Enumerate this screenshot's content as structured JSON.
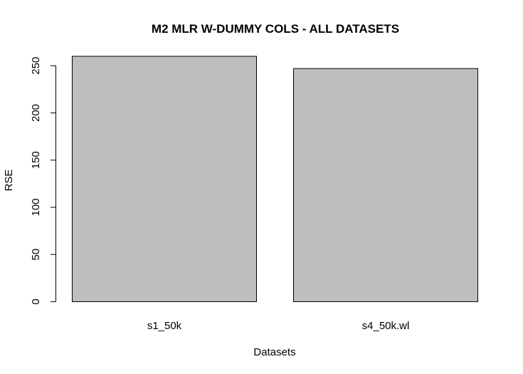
{
  "chart_data": {
    "type": "bar",
    "title": "M2 MLR W-DUMMY COLS - ALL DATASETS",
    "xlabel": "Datasets",
    "ylabel": "RSE",
    "categories": [
      "s1_50k",
      "s4_50k.wl"
    ],
    "values": [
      260,
      247
    ],
    "ylim": [
      0,
      250
    ],
    "yticks": [
      0,
      50,
      100,
      150,
      200,
      250
    ],
    "bar_color": "#bebebe",
    "bar_border": "#000000",
    "grid": false,
    "legend": "none"
  }
}
